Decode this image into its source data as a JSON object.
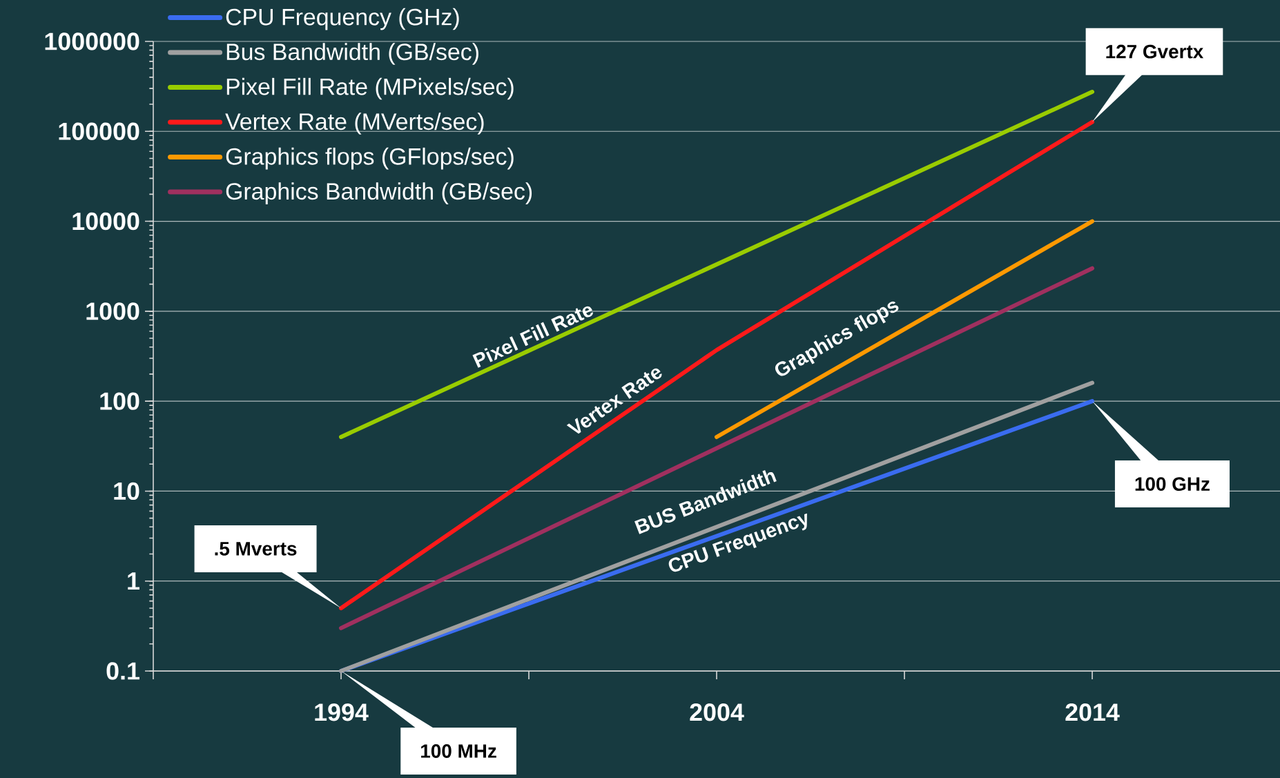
{
  "chart_data": {
    "type": "line",
    "log": "y",
    "grid": "y",
    "legend": "top left",
    "marker": "none",
    "line_style": "solid",
    "xlim": [
      1989,
      2019
    ],
    "xticks": [
      {
        "value": 1989,
        "label": null
      },
      {
        "value": 1994,
        "label": "1994"
      },
      {
        "value": 1999,
        "label": null
      },
      {
        "value": 2004,
        "label": "2004"
      },
      {
        "value": 2009,
        "label": null
      },
      {
        "value": 2014,
        "label": "2014"
      }
    ],
    "ylim": [
      0.1,
      1000000
    ],
    "yticks": [
      0.1,
      1,
      10,
      100,
      1000,
      10000,
      100000,
      1000000
    ],
    "series": [
      {
        "name": "CPU Frequency (GHz)",
        "color": "#3a6cf0",
        "x": [
          1994,
          2014
        ],
        "values": [
          0.1,
          100
        ]
      },
      {
        "name": "Bus Bandwidth (GB/sec)",
        "color": "#a0a0a0",
        "x": [
          1994,
          2014
        ],
        "values": [
          0.1,
          160
        ]
      },
      {
        "name": "Pixel Fill Rate (MPixels/sec)",
        "color": "#99cc00",
        "x": [
          1994,
          2014
        ],
        "values": [
          40,
          275000
        ]
      },
      {
        "name": "Vertex Rate (MVerts/sec)",
        "color": "#ff1a1a",
        "x": [
          1994,
          2004,
          2014
        ],
        "values": [
          0.5,
          370,
          127000
        ]
      },
      {
        "name": "Graphics flops (GFlops/sec)",
        "color": "#ff9900",
        "x": [
          2004,
          2014
        ],
        "values": [
          40,
          10000
        ]
      },
      {
        "name": "Graphics Bandwidth (GB/sec)",
        "color": "#a0305f",
        "x": [
          1994,
          2014
        ],
        "values": [
          0.3,
          3000
        ]
      }
    ],
    "annotations": [
      ".5 Mverts",
      "100 MHz",
      "127 Gvertx",
      "100 GHz",
      "Pixel Fill Rate",
      "Vertex Rate",
      "Graphics flops",
      "BUS Bandwidth",
      "CPU Frequency"
    ]
  }
}
